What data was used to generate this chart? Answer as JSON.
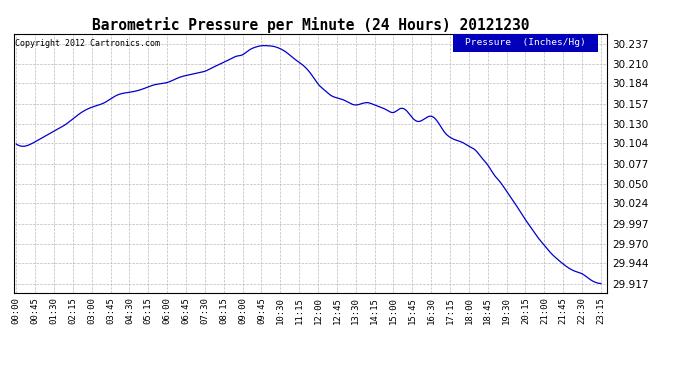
{
  "title": "Barometric Pressure per Minute (24 Hours) 20121230",
  "legend_label": "Pressure  (Inches/Hg)",
  "copyright": "Copyright 2012 Cartronics.com",
  "line_color": "#0000cc",
  "legend_bg": "#0000bb",
  "legend_text_color": "#ffffff",
  "bg_color": "#ffffff",
  "plot_bg_color": "#ffffff",
  "grid_color": "#bbbbbb",
  "border_color": "#000000",
  "yticks": [
    29.917,
    29.944,
    29.97,
    29.997,
    30.024,
    30.05,
    30.077,
    30.104,
    30.13,
    30.157,
    30.184,
    30.21,
    30.237
  ],
  "ymin": 29.905,
  "ymax": 30.25,
  "x_tick_labels": [
    "00:00",
    "00:45",
    "01:30",
    "02:15",
    "03:00",
    "03:45",
    "04:30",
    "05:15",
    "06:00",
    "06:45",
    "07:30",
    "08:15",
    "09:00",
    "09:45",
    "10:30",
    "11:15",
    "12:00",
    "12:45",
    "13:30",
    "14:15",
    "15:00",
    "15:45",
    "16:30",
    "17:15",
    "18:00",
    "18:45",
    "19:30",
    "20:15",
    "21:00",
    "21:45",
    "22:30",
    "23:15"
  ],
  "keypoints_x": [
    0,
    0.3,
    0.75,
    1.5,
    2.0,
    2.5,
    3.0,
    3.5,
    4.0,
    4.5,
    5.0,
    5.5,
    6.0,
    6.5,
    7.0,
    7.25,
    7.5,
    7.75,
    8.0,
    8.25,
    8.5,
    8.75,
    9.0,
    9.25,
    9.5,
    9.75,
    10.0,
    10.25,
    10.5,
    10.75,
    11.0,
    11.25,
    11.5,
    11.75,
    12.0,
    12.25,
    12.5,
    13.0,
    13.5,
    13.75,
    14.0,
    14.25,
    14.5,
    14.75,
    15.0,
    15.25,
    15.5,
    15.75,
    16.0,
    16.25,
    16.5,
    16.75,
    17.0,
    17.25,
    17.5,
    17.75,
    18.0,
    18.25,
    18.5,
    18.75,
    19.0,
    19.25,
    19.5,
    19.75,
    20.0,
    20.25,
    20.5,
    20.75,
    21.0,
    21.25,
    21.5,
    21.75,
    22.0,
    22.25,
    22.5,
    22.75,
    23.0,
    23.25
  ],
  "keypoints_y": [
    30.103,
    30.1,
    30.106,
    30.12,
    30.13,
    30.143,
    30.152,
    30.158,
    30.168,
    30.172,
    30.176,
    30.182,
    30.185,
    30.192,
    30.196,
    30.198,
    30.2,
    30.204,
    30.208,
    30.212,
    30.216,
    30.22,
    30.222,
    30.228,
    30.232,
    30.234,
    30.234,
    30.233,
    30.23,
    30.225,
    30.218,
    30.212,
    30.205,
    30.195,
    30.183,
    30.175,
    30.168,
    30.162,
    30.155,
    30.157,
    30.158,
    30.155,
    30.152,
    30.148,
    30.145,
    30.15,
    30.148,
    30.138,
    30.133,
    30.137,
    30.14,
    30.133,
    30.12,
    30.112,
    30.108,
    30.105,
    30.1,
    30.095,
    30.085,
    30.075,
    30.062,
    30.052,
    30.04,
    30.028,
    30.015,
    30.002,
    29.99,
    29.978,
    29.968,
    29.958,
    29.95,
    29.943,
    29.937,
    29.933,
    29.93,
    29.924,
    29.919,
    29.917
  ]
}
